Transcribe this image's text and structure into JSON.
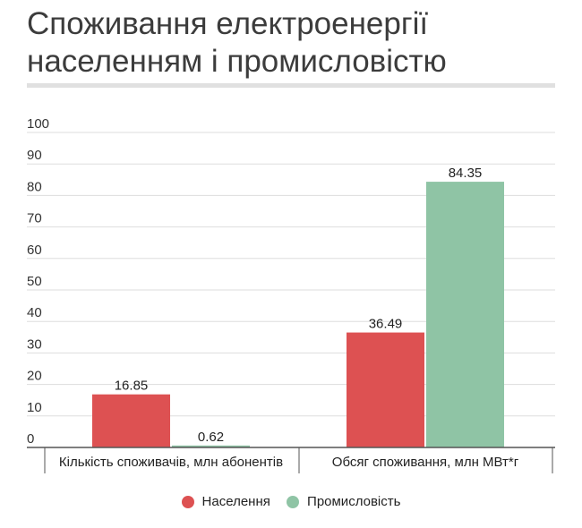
{
  "title": "Споживання електроенергії населенням і промисловістю",
  "colors": {
    "series_1": "#dd5152",
    "series_2": "#8fc4a5",
    "grid": "#dddddd",
    "axis": "#555555"
  },
  "chart_data": {
    "type": "bar",
    "title": "Споживання електроенергії населенням і промисловістю",
    "categories": [
      "Кількість споживачів, млн абонентів",
      "Обсяг споживання, млн МВт*г"
    ],
    "series": [
      {
        "name": "Населення",
        "values": [
          16.85,
          36.49
        ]
      },
      {
        "name": "Промисловість",
        "values": [
          0.62,
          84.35
        ]
      }
    ],
    "value_labels": [
      [
        "16.85",
        "36.49"
      ],
      [
        "0.62",
        "84.35"
      ]
    ],
    "ylim": [
      0,
      100
    ],
    "yticks": [
      "0",
      "10",
      "20",
      "30",
      "40",
      "50",
      "60",
      "70",
      "80",
      "90",
      "100"
    ],
    "xlabel": "",
    "ylabel": "",
    "grid": true,
    "legend": "bottom"
  }
}
